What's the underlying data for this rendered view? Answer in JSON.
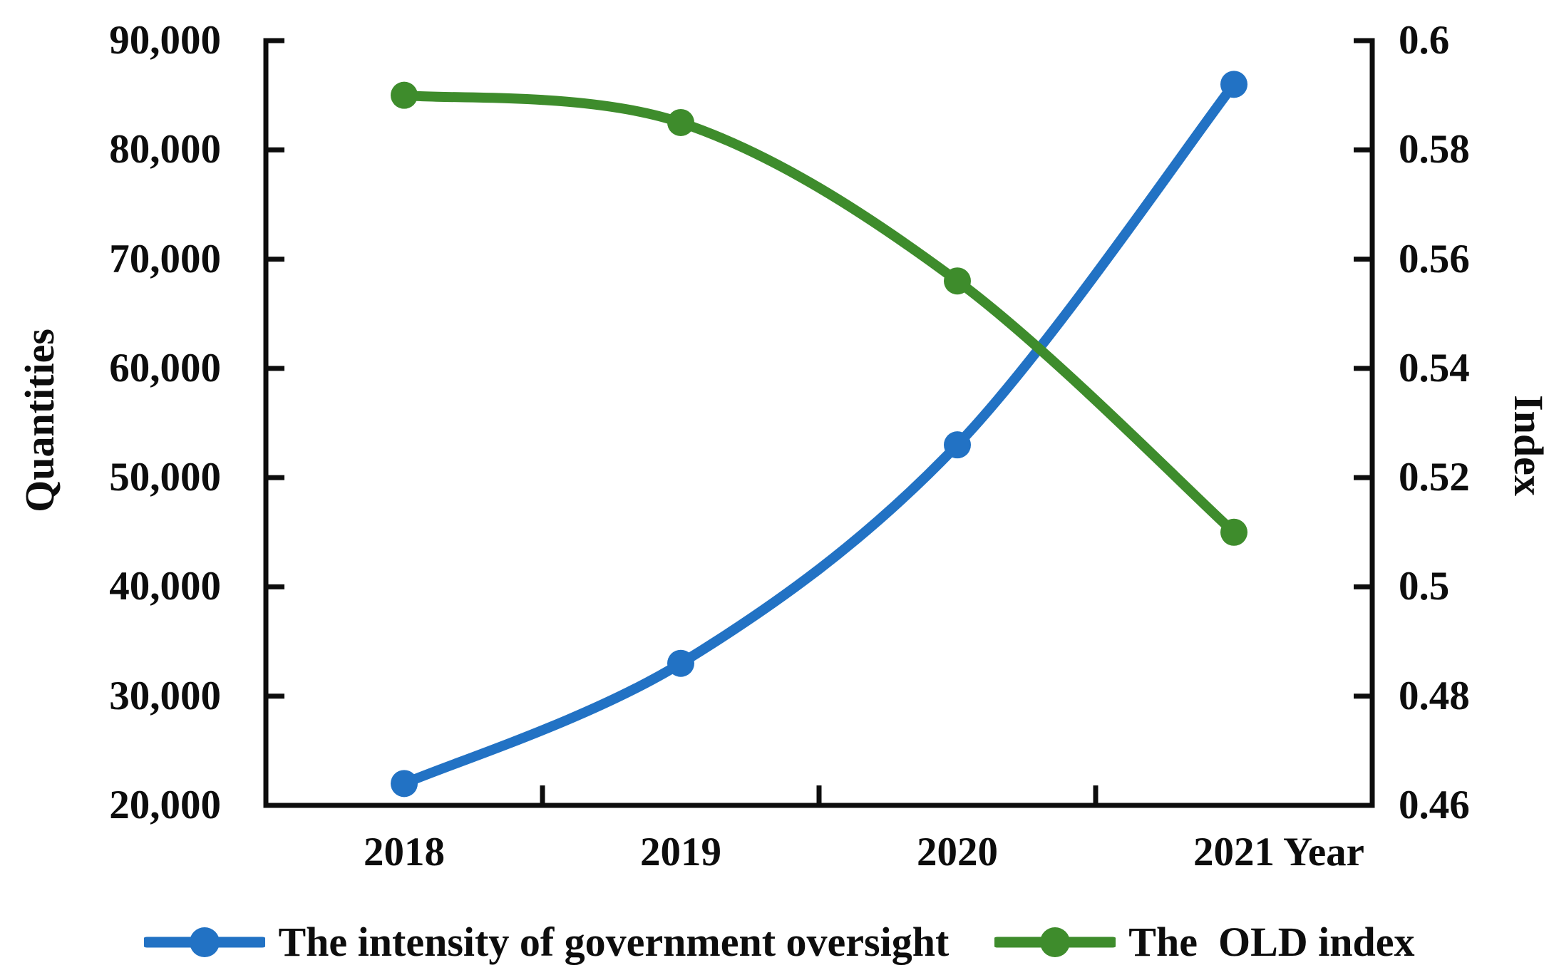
{
  "chart_data": {
    "type": "line",
    "line_style": "smooth",
    "grid": false,
    "legend_position": "bottom",
    "categories": [
      "2018",
      "2019",
      "2020",
      "2021"
    ],
    "series": [
      {
        "name": "The intensity of government oversight",
        "axis": "left",
        "color": "#2272C4",
        "marker": "circle",
        "values": [
          22000,
          33000,
          53000,
          86000
        ]
      },
      {
        "name": "The  OLD index",
        "axis": "right",
        "color": "#3E8C2C",
        "marker": "circle",
        "values": [
          0.59,
          0.585,
          0.556,
          0.51
        ]
      }
    ],
    "left_axis": {
      "title": "Quantities",
      "min": 20000,
      "max": 90000,
      "tick_step": 10000,
      "tick_labels": [
        "90,000",
        "80,000",
        "70,000",
        "60,000",
        "50,000",
        "40,000",
        "30,000",
        "20,000"
      ]
    },
    "right_axis": {
      "title": "Index",
      "min": 0.46,
      "max": 0.6,
      "tick_step": 0.02,
      "tick_labels": [
        "0.6",
        "0.58",
        "0.56",
        "0.54",
        "0.52",
        "0.5",
        "0.48",
        "0.46"
      ]
    },
    "x_axis": {
      "title": "Year",
      "tick_labels": [
        "2018",
        "2019",
        "2020",
        "2021"
      ]
    },
    "axis_color": "#0d0d0d"
  }
}
